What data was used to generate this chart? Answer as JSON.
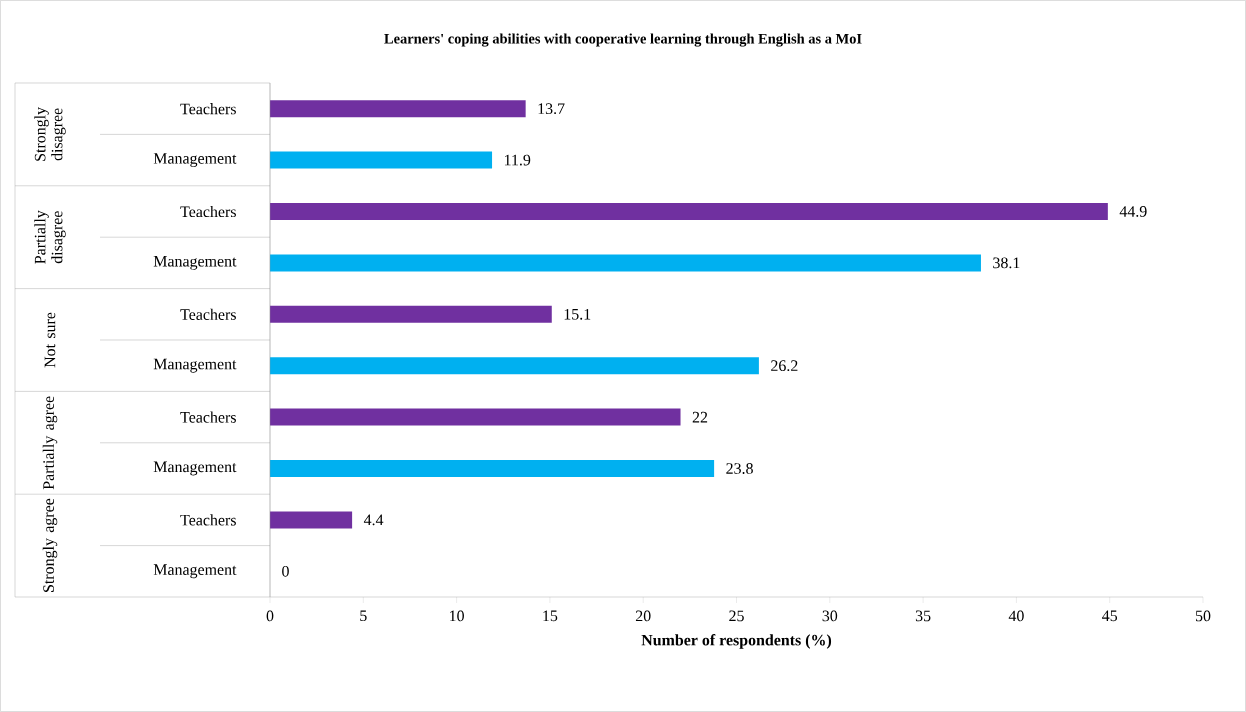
{
  "chart_data": {
    "type": "bar",
    "orientation": "horizontal",
    "title": "Learners' coping abilities with cooperative learning through English as a MoI",
    "xlabel": "Number of respondents (%)",
    "categories": [
      "Teachers",
      "Management",
      "Teachers",
      "Management",
      "Teachers",
      "Management",
      "Teachers",
      "Management",
      "Teachers",
      "Management"
    ],
    "values": [
      13.7,
      11.9,
      44.9,
      38.1,
      15.1,
      26.2,
      22,
      23.8,
      4.4,
      0
    ],
    "colors": [
      "#7030a0",
      "#00b0f0",
      "#7030a0",
      "#00b0f0",
      "#7030a0",
      "#00b0f0",
      "#7030a0",
      "#00b0f0",
      "#7030a0",
      "#00b0f0"
    ],
    "annotations": [
      "Strongly disagree",
      "Partially disagree",
      "Not sure",
      "Partially agree",
      "Strongly agree"
    ],
    "xlim": [
      0,
      50
    ],
    "xticks": [
      0,
      5,
      10,
      15,
      20,
      25,
      30,
      35,
      40,
      45,
      50
    ],
    "data_labels": true
  }
}
